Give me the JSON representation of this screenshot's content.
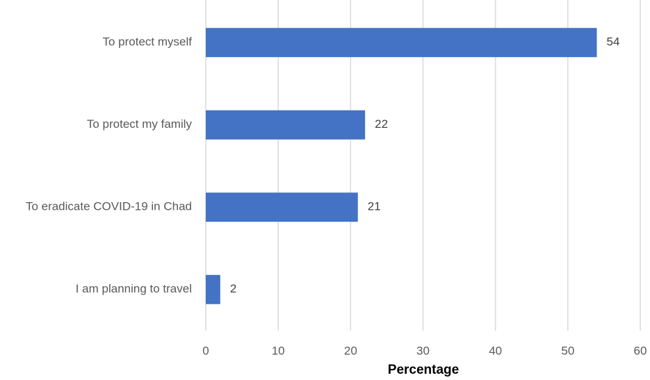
{
  "chart_data": {
    "type": "bar",
    "orientation": "horizontal",
    "categories": [
      "To protect myself",
      "To protect my family",
      "To eradicate COVID-19 in Chad",
      "I am planning to travel"
    ],
    "values": [
      54,
      22,
      21,
      2
    ],
    "color": "#4472c4",
    "xlabel": "Percentage",
    "xlim": [
      0,
      60
    ],
    "xticks": [
      0,
      10,
      20,
      30,
      40,
      50,
      60
    ],
    "grid": true,
    "data_labels": true
  }
}
